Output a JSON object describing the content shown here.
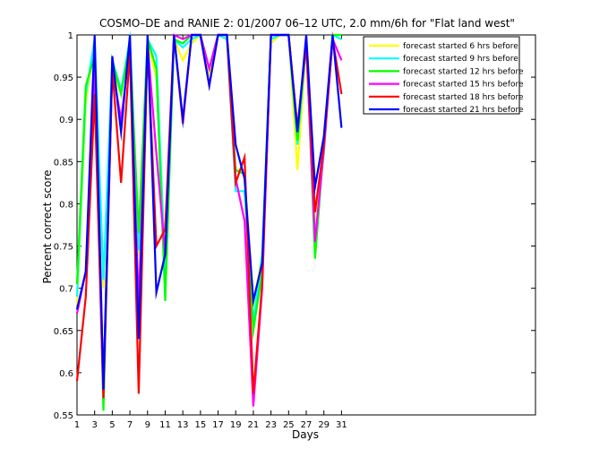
{
  "chart_data": {
    "type": "line",
    "title": "COSMO–DE and RANIE 2: 01/2007 06–12 UTC, 2.0 mm/6h for \"Flat land west\"",
    "xlabel": "Days",
    "ylabel": "Percent correct score",
    "xlim": [
      1,
      53
    ],
    "ylim": [
      0.55,
      1
    ],
    "xticks": [
      1,
      3,
      5,
      7,
      9,
      11,
      13,
      15,
      17,
      19,
      21,
      23,
      25,
      27,
      29,
      31
    ],
    "yticks": [
      0.55,
      0.6,
      0.65,
      0.7,
      0.75,
      0.8,
      0.85,
      0.9,
      0.95,
      1
    ],
    "ytick_labels": [
      "0.55",
      "0.6",
      "0.65",
      "0.7",
      "0.75",
      "0.8",
      "0.85",
      "0.9",
      "0.95",
      "1"
    ],
    "grid": false,
    "legend_position": "top-right",
    "x": [
      1,
      2,
      3,
      4,
      5,
      6,
      7,
      8,
      9,
      10,
      11,
      12,
      13,
      14,
      15,
      16,
      17,
      18,
      19,
      20,
      21,
      22,
      23,
      24,
      25,
      26,
      27,
      28,
      29,
      30,
      31
    ],
    "series": [
      {
        "name": "forecast started 6 hrs before",
        "color": "#ffff00",
        "values": [
          0.68,
          0.92,
          0.99,
          0.7,
          0.96,
          0.93,
          0.99,
          0.74,
          0.99,
          0.95,
          0.73,
          0.995,
          0.97,
          0.99,
          1.0,
          0.955,
          1.0,
          0.995,
          0.84,
          0.84,
          0.68,
          0.74,
          0.99,
          1.0,
          1.0,
          0.84,
          0.99,
          0.77,
          0.86,
          1.0,
          1.0
        ]
      },
      {
        "name": "forecast started 9 hrs before",
        "color": "#00ffff",
        "values": [
          0.69,
          0.93,
          0.995,
          0.71,
          0.97,
          0.935,
          0.995,
          0.745,
          0.995,
          0.975,
          0.72,
          0.995,
          0.985,
          0.995,
          1.0,
          0.96,
          1.0,
          0.995,
          0.815,
          0.815,
          0.66,
          0.74,
          0.995,
          1.0,
          1.0,
          0.87,
          0.99,
          0.76,
          0.86,
          1.0,
          0.995
        ]
      },
      {
        "name": "forecast started 12 hrs before",
        "color": "#00ff00",
        "values": [
          0.705,
          0.94,
          0.975,
          0.555,
          0.97,
          0.93,
          0.99,
          0.765,
          0.995,
          0.96,
          0.685,
          0.995,
          0.99,
          1.0,
          1.0,
          0.96,
          1.0,
          1.0,
          0.84,
          0.835,
          0.65,
          0.72,
          1.0,
          1.0,
          1.0,
          0.875,
          0.995,
          0.735,
          0.87,
          1.0,
          1.0
        ]
      },
      {
        "name": "forecast started 15 hrs before",
        "color": "#ff00ff",
        "values": [
          0.67,
          0.72,
          0.96,
          0.585,
          0.96,
          0.9,
          0.985,
          0.68,
          0.99,
          0.86,
          0.74,
          1.0,
          0.995,
          1.0,
          1.0,
          0.96,
          1.0,
          1.0,
          0.83,
          0.78,
          0.56,
          0.7,
          1.0,
          1.0,
          1.0,
          0.89,
          0.99,
          0.755,
          0.865,
          0.995,
          0.97
        ]
      },
      {
        "name": "forecast started 18 hrs before",
        "color": "#ff0000",
        "values": [
          0.59,
          0.69,
          0.93,
          0.57,
          0.96,
          0.825,
          0.98,
          0.575,
          0.99,
          0.75,
          0.77,
          1.0,
          0.895,
          1.0,
          1.0,
          0.94,
          1.0,
          1.0,
          0.825,
          0.855,
          0.575,
          0.705,
          1.0,
          1.0,
          1.0,
          0.89,
          0.99,
          0.79,
          0.87,
          0.995,
          0.93
        ]
      },
      {
        "name": "forecast started 21 hrs before",
        "color": "#0000ff",
        "values": [
          0.675,
          0.72,
          1.0,
          0.58,
          0.975,
          0.885,
          1.0,
          0.64,
          1.0,
          0.695,
          0.74,
          1.0,
          0.9,
          1.0,
          1.0,
          0.94,
          1.0,
          1.0,
          0.87,
          0.83,
          0.685,
          0.73,
          1.0,
          1.0,
          1.0,
          0.885,
          1.0,
          0.82,
          0.88,
          1.0,
          0.89
        ]
      }
    ]
  }
}
